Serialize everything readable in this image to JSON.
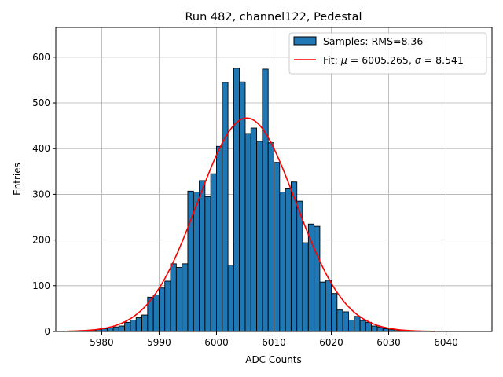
{
  "chart_data": {
    "type": "bar",
    "title": "Run 482, channel122, Pedestal",
    "xlabel": "ADC Counts",
    "ylabel": "Entries",
    "xlim": [
      5972,
      6048
    ],
    "ylim": [
      0,
      665
    ],
    "xticks": [
      5980,
      5990,
      6000,
      6010,
      6020,
      6030,
      6040
    ],
    "yticks": [
      0,
      100,
      200,
      300,
      400,
      500,
      600
    ],
    "grid": true,
    "legend_position": "top-right",
    "bin_width": 1,
    "histogram": {
      "name": "Samples: RMS=8.36",
      "color": "#1f77b4",
      "bin_starts": [
        5974,
        5975,
        5976,
        5977,
        5978,
        5979,
        5980,
        5981,
        5982,
        5983,
        5984,
        5985,
        5986,
        5987,
        5988,
        5989,
        5990,
        5991,
        5992,
        5993,
        5994,
        5995,
        5996,
        5997,
        5998,
        5999,
        6000,
        6001,
        6002,
        6003,
        6004,
        6005,
        6006,
        6007,
        6008,
        6009,
        6010,
        6011,
        6012,
        6013,
        6014,
        6015,
        6016,
        6017,
        6018,
        6019,
        6020,
        6021,
        6022,
        6023,
        6024,
        6025,
        6026,
        6027,
        6028,
        6029,
        6030,
        6031,
        6032,
        6033,
        6034
      ],
      "counts": [
        1,
        1,
        2,
        2,
        3,
        4,
        6,
        8,
        10,
        12,
        20,
        25,
        30,
        36,
        75,
        80,
        95,
        110,
        148,
        140,
        148,
        307,
        305,
        330,
        295,
        345,
        405,
        545,
        145,
        576,
        546,
        433,
        445,
        416,
        574,
        413,
        370,
        305,
        312,
        327,
        285,
        194,
        235,
        230,
        108,
        112,
        83,
        47,
        43,
        25,
        33,
        24,
        20,
        12,
        10,
        6,
        4,
        2,
        1,
        1,
        1
      ]
    },
    "fit": {
      "name": "Fit: μ = 6005.265, σ = 8.541",
      "legend_prefix": "Fit: ",
      "legend_mu": "μ",
      "legend_mu_value": " = 6005.265, ",
      "legend_sigma": "σ",
      "legend_sigma_value": " = 8.541",
      "color": "#ff0000",
      "mu": 6005.265,
      "sigma": 8.541,
      "amplitude": 467,
      "x_range": [
        5974,
        6038
      ]
    }
  }
}
